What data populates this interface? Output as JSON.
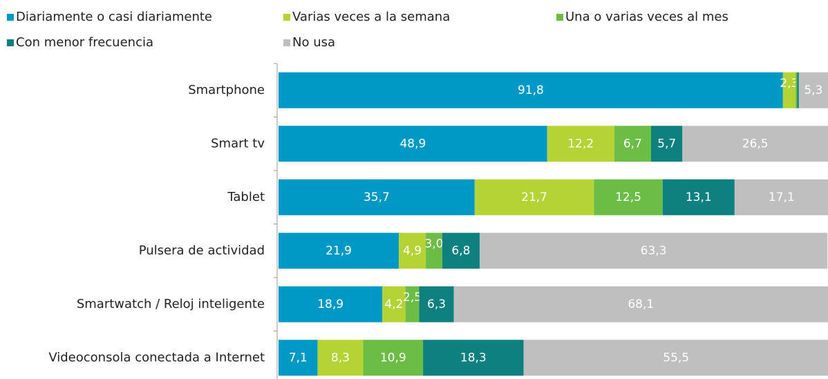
{
  "chart_data": {
    "type": "stacked-bar-horizontal",
    "categories": [
      "Smartphone",
      "Smart tv",
      "Tablet",
      "Pulsera de actividad",
      "Smartwatch / Reloj inteligente",
      "Videoconsola conectada a Internet"
    ],
    "series": [
      {
        "name": "Diariamente o casi diariamente",
        "color": "#0099c6",
        "values": [
          91.8,
          48.9,
          35.7,
          21.9,
          18.9,
          7.1
        ],
        "value_labels": [
          "91,8",
          "48,9",
          "35,7",
          "21,9",
          "18,9",
          "7,1"
        ]
      },
      {
        "name": "Varias veces a la semana",
        "color": "#b5d334",
        "values": [
          2.3,
          12.2,
          21.7,
          4.9,
          4.2,
          8.3
        ],
        "value_labels": [
          "2,3",
          "12,2",
          "21,7",
          "4,9",
          "4,2",
          "8,3"
        ]
      },
      {
        "name": "Una o varias veces al mes",
        "color": "#6bbd45",
        "values": [
          0.3,
          6.7,
          12.5,
          3.0,
          2.5,
          10.9
        ],
        "value_labels": [
          null,
          "6,7",
          "12,5",
          "3,0",
          "2,5",
          "10,9"
        ]
      },
      {
        "name": "Con menor frecuencia",
        "color": "#0e8080",
        "values": [
          0.3,
          5.7,
          13.1,
          6.8,
          6.3,
          18.3
        ],
        "value_labels": [
          null,
          "5,7",
          "13,1",
          "6,8",
          "6,3",
          "18,3"
        ]
      },
      {
        "name": "No usa",
        "color": "#bfbfbf",
        "values": [
          5.3,
          26.5,
          17.1,
          63.3,
          68.1,
          55.5
        ],
        "value_labels": [
          "5,3",
          "26,5",
          "17,1",
          "63,3",
          "68,1",
          "55,5"
        ]
      }
    ],
    "xlim": [
      0,
      100
    ]
  }
}
